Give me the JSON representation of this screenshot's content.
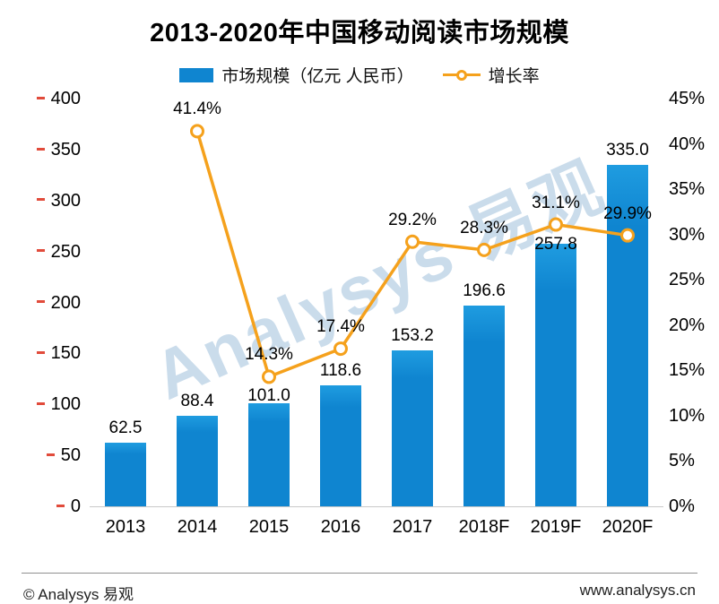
{
  "title": "2013-2020年中国移动阅读市场规模",
  "legend": {
    "bar_label": "市场规模（亿元 人民币）",
    "line_label": "增长率"
  },
  "watermark": {
    "text": "Analysys 易观"
  },
  "footer": {
    "copyright": "© Analysys 易观",
    "website": "www.analysys.cn"
  },
  "colors": {
    "bar": "#0f85d0",
    "bar_top": "#1f9ce0",
    "line": "#F5A11C",
    "tick_mark": "#E14B3B",
    "watermark": "#9FC0DC",
    "baseline": "#c9c9c9",
    "text": "#000000"
  },
  "chart_data": {
    "type": "bar",
    "combo": "bar+line",
    "title": "2013-2020年中国移动阅读市场规模",
    "categories": [
      "2013",
      "2014",
      "2015",
      "2016",
      "2017",
      "2018F",
      "2019F",
      "2020F"
    ],
    "series": [
      {
        "name": "市场规模（亿元 人民币）",
        "type": "bar",
        "axis": "left",
        "values": [
          62.5,
          88.4,
          101.0,
          118.6,
          153.2,
          196.6,
          257.8,
          335.0
        ],
        "labels": [
          "62.5",
          "88.4",
          "101.0",
          "118.6",
          "153.2",
          "196.6",
          "257.8",
          "335.0"
        ]
      },
      {
        "name": "增长率",
        "type": "line",
        "axis": "right",
        "unit": "%",
        "values": [
          null,
          41.4,
          14.3,
          17.4,
          29.2,
          28.3,
          31.1,
          29.9
        ],
        "labels": [
          null,
          "41.4%",
          "14.3%",
          "17.4%",
          "29.2%",
          "28.3%",
          "31.1%",
          "29.9%"
        ]
      }
    ],
    "left_axis": {
      "min": 0,
      "max": 400,
      "step": 50,
      "ticks": [
        "0",
        "50",
        "100",
        "150",
        "200",
        "250",
        "300",
        "350",
        "400"
      ]
    },
    "right_axis": {
      "min": 0,
      "max": 45,
      "step": 5,
      "ticks": [
        "0%",
        "5%",
        "10%",
        "15%",
        "20%",
        "25%",
        "30%",
        "35%",
        "40%",
        "45%"
      ]
    },
    "grid": false,
    "legend_position": "top"
  }
}
